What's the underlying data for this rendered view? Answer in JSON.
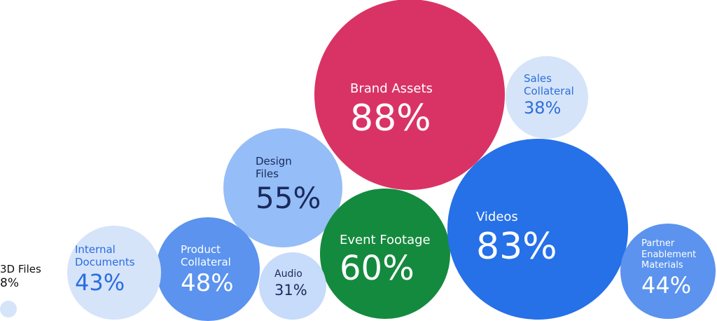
{
  "chart_data": {
    "type": "bubble",
    "categories": [
      "Brand Assets",
      "Sales Collateral",
      "Design Files",
      "Event Footage",
      "Videos",
      "Partner Enablement Materials",
      "Product Collateral",
      "Audio",
      "Internal Documents",
      "3D Files"
    ],
    "values": [
      88,
      38,
      55,
      60,
      83,
      44,
      48,
      31,
      43,
      8
    ],
    "value_labels": [
      "88%",
      "38%",
      "55%",
      "60%",
      "83%",
      "44%",
      "48%",
      "31%",
      "43%",
      "8%"
    ],
    "colors": [
      "#d93366",
      "#d6e4fa",
      "#95bdf7",
      "#148a3e",
      "#2670e8",
      "#5b93ee",
      "#5b93ee",
      "#c7dbfa",
      "#d6e4fa",
      "#d6e4fa"
    ]
  }
}
